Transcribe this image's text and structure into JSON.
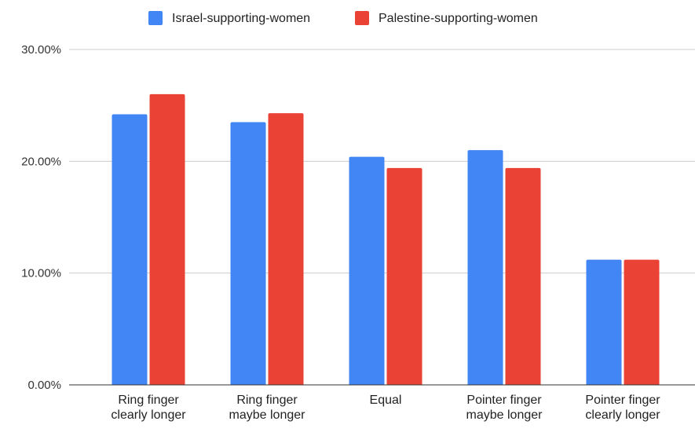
{
  "chart_data": {
    "type": "bar",
    "categories": [
      "Ring finger clearly longer",
      "Ring finger maybe longer",
      "Equal",
      "Pointer finger maybe longer",
      "Pointer finger clearly longer"
    ],
    "category_label_lines": [
      [
        "Ring finger",
        "clearly longer"
      ],
      [
        "Ring finger",
        "maybe longer"
      ],
      [
        "Equal"
      ],
      [
        "Pointer finger",
        "maybe longer"
      ],
      [
        "Pointer finger",
        "clearly longer"
      ]
    ],
    "series": [
      {
        "name": "Israel-supporting-women",
        "color": "#4285f4",
        "values": [
          24.2,
          23.5,
          20.4,
          21.0,
          11.2
        ]
      },
      {
        "name": "Palestine-supporting-women",
        "color": "#ea4335",
        "values": [
          26.0,
          24.3,
          19.4,
          19.4,
          11.2
        ]
      }
    ],
    "y_ticks": [
      "0.00%",
      "10.00%",
      "20.00%",
      "30.00%"
    ],
    "ylim": [
      0,
      30
    ],
    "title": "",
    "xlabel": "",
    "ylabel": "",
    "grid": true,
    "legend_position": "top-center"
  }
}
